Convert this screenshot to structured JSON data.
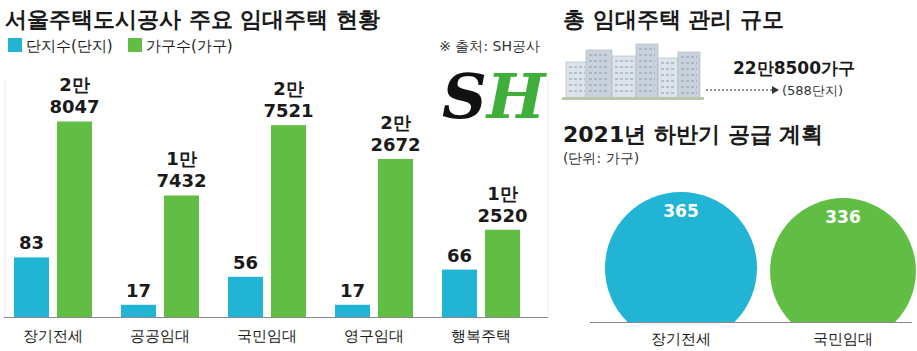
{
  "chart_data": [
    {
      "type": "bar",
      "title": "서울주택도시공사 주요 임대주택 현황",
      "annotations": [
        "※ 출처: SH공사"
      ],
      "categories": [
        "장기전세",
        "공공임대",
        "국민임대",
        "영구임대",
        "행복주택"
      ],
      "series": [
        {
          "name": "단지수(단지)",
          "color": "#22b4d4",
          "values": [
            83,
            17,
            56,
            17,
            66
          ]
        },
        {
          "name": "가구수(가구)",
          "color": "#62bd45",
          "axis": "y2",
          "values": [
            28047,
            17432,
            27521,
            22672,
            12520
          ],
          "value_labels": [
            "2만 8047",
            "1만 7432",
            "2만 7521",
            "2만 2672",
            "1만 2520"
          ]
        }
      ],
      "ylim": [
        0,
        330
      ],
      "yticks": [],
      "y2lim": [
        0,
        34000
      ],
      "y2ticks": [],
      "data_labels": true,
      "tick_labels": "x",
      "legend": "top-left",
      "grid": false
    },
    {
      "type": "bubble",
      "title": "2021년 하반기 공급 계획",
      "subtitle": "(단위: 가구)",
      "categories": [
        "장기전세",
        "국민임대"
      ],
      "values": [
        365,
        336
      ],
      "colors": [
        "#22b4d4",
        "#62bd45"
      ],
      "data_labels": true
    }
  ],
  "total": {
    "title": "총 임대주택 관리 규모",
    "households": "22만8500가구",
    "complexes": "(588단지)"
  },
  "logo": "SH"
}
